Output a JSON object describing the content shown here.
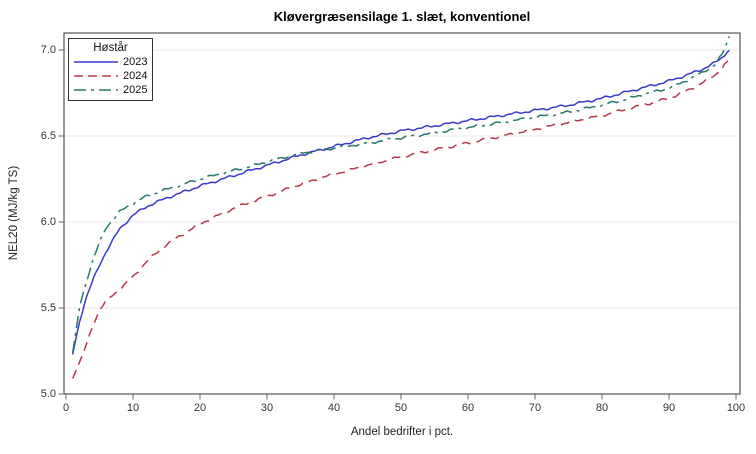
{
  "chart_data": {
    "type": "line",
    "title": "Kløvergræsensilage 1. slæt, konventionel",
    "xlabel": "Andel bedrifter i pct.",
    "ylabel": "NEL20 (MJ/kg TS)",
    "xlim": [
      0,
      100
    ],
    "ylim": [
      5.0,
      7.1
    ],
    "x_ticks": [
      0,
      10,
      20,
      30,
      40,
      50,
      60,
      70,
      80,
      90,
      100
    ],
    "x_tick_labels": [
      "0",
      "10",
      "20",
      "30",
      "40",
      "50",
      "60",
      "70",
      "80",
      "90",
      "100"
    ],
    "y_ticks": [
      5.0,
      5.5,
      6.0,
      6.5,
      7.0
    ],
    "y_tick_labels": [
      "5.0",
      "5.5",
      "6.0",
      "6.5",
      "7.0"
    ],
    "grid": "horizontal-only",
    "legend": {
      "title": "Høstår",
      "position": "top-left-inside"
    },
    "x_shared": [
      1,
      2,
      3,
      4,
      5,
      6,
      8,
      10,
      12,
      15,
      20,
      25,
      30,
      35,
      40,
      45,
      50,
      55,
      60,
      65,
      70,
      75,
      80,
      85,
      90,
      93,
      95,
      97,
      98,
      99
    ],
    "series": [
      {
        "name": "2023",
        "color": "#3a3acb",
        "dash": "solid",
        "values": [
          5.23,
          5.42,
          5.56,
          5.66,
          5.75,
          5.83,
          5.96,
          6.04,
          6.09,
          6.14,
          6.21,
          6.27,
          6.33,
          6.39,
          6.44,
          6.49,
          6.53,
          6.56,
          6.59,
          6.62,
          6.65,
          6.68,
          6.72,
          6.77,
          6.82,
          6.86,
          6.89,
          6.93,
          6.96,
          7.0
        ]
      },
      {
        "name": "2024",
        "color": "#b53b48",
        "dash": "dashed",
        "values": [
          5.09,
          5.18,
          5.28,
          5.4,
          5.49,
          5.54,
          5.61,
          5.68,
          5.77,
          5.87,
          5.99,
          6.08,
          6.15,
          6.22,
          6.28,
          6.33,
          6.38,
          6.42,
          6.46,
          6.5,
          6.54,
          6.58,
          6.62,
          6.67,
          6.72,
          6.77,
          6.81,
          6.86,
          6.9,
          6.95
        ]
      },
      {
        "name": "2025",
        "color": "#27786d",
        "dash": "dash-dot",
        "values": [
          5.24,
          5.5,
          5.65,
          5.78,
          5.88,
          5.97,
          6.06,
          6.11,
          6.15,
          6.19,
          6.25,
          6.3,
          6.35,
          6.4,
          6.43,
          6.46,
          6.49,
          6.52,
          6.55,
          6.58,
          6.61,
          6.64,
          6.68,
          6.73,
          6.78,
          6.83,
          6.87,
          6.92,
          6.98,
          7.08
        ]
      }
    ],
    "colors": {
      "grid": "#e9e9e9",
      "border": "#333333",
      "tick": "#666666",
      "text": "#333333"
    }
  }
}
